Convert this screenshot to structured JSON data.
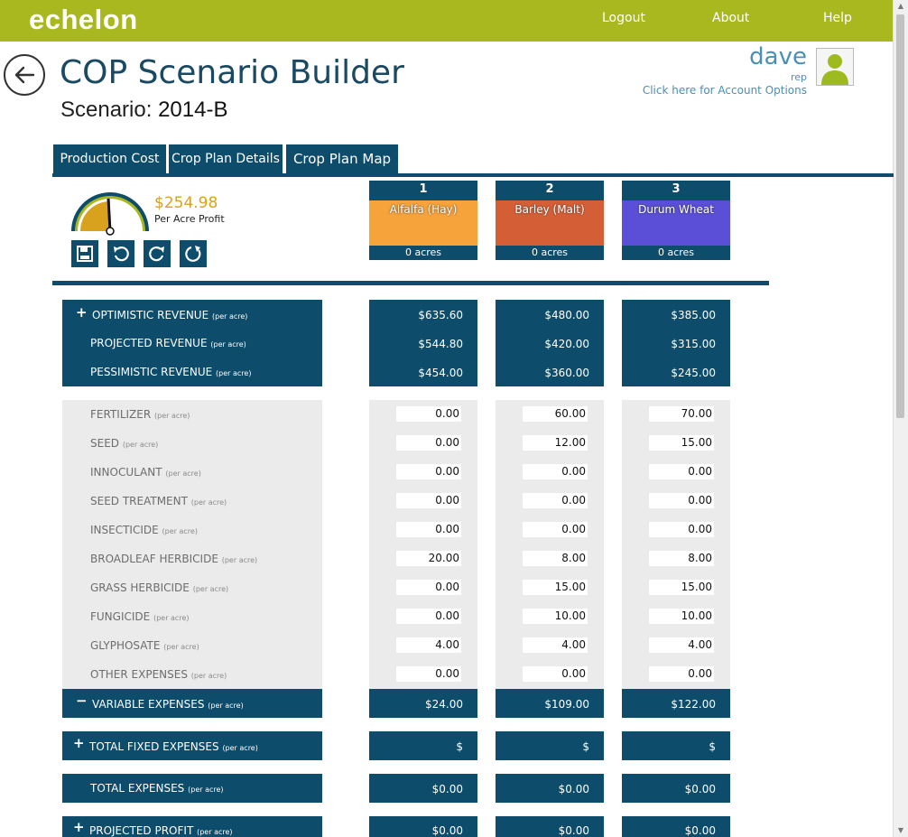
{
  "nav": {
    "logo": "echelon",
    "logout": "Logout",
    "about": "About",
    "help": "Help"
  },
  "page": {
    "title": "COP Scenario Builder",
    "scenario_label": "Scenario:",
    "scenario_value": "2014-B"
  },
  "user": {
    "name": "dave",
    "role": "rep",
    "options": "Click here for Account Options"
  },
  "tabs": [
    {
      "label": "Production Cost"
    },
    {
      "label": "Crop Plan Details"
    },
    {
      "label": "Crop Plan Map"
    }
  ],
  "summary": {
    "profit": "$254.98",
    "profit_label": "Per Acre Profit"
  },
  "toolbar": {
    "save": "save-icon",
    "undo": "undo-icon",
    "redo": "redo-icon",
    "reset": "reset-icon"
  },
  "crops": [
    {
      "num": "1",
      "name": "Alfalfa (Hay)",
      "acres": "0 acres",
      "color": "#f7a33c"
    },
    {
      "num": "2",
      "name": "Barley (Malt)",
      "acres": "0 acres",
      "color": "#d45f36"
    },
    {
      "num": "3",
      "name": "Durum Wheat",
      "acres": "0 acres",
      "color": "#5a4fd6"
    }
  ],
  "per_acre": "(per acre)",
  "revenue": [
    {
      "label": "OPTIMISTIC REVENUE",
      "toggle": "+",
      "values": [
        "$635.60",
        "$480.00",
        "$385.00"
      ]
    },
    {
      "label": "PROJECTED REVENUE",
      "toggle": "",
      "values": [
        "$544.80",
        "$420.00",
        "$315.00"
      ]
    },
    {
      "label": "PESSIMISTIC REVENUE",
      "toggle": "",
      "values": [
        "$454.00",
        "$360.00",
        "$245.00"
      ]
    }
  ],
  "expenses": [
    {
      "label": "FERTILIZER",
      "values": [
        "0.00",
        "60.00",
        "70.00"
      ]
    },
    {
      "label": "SEED",
      "values": [
        "0.00",
        "12.00",
        "15.00"
      ]
    },
    {
      "label": "INNOCULANT",
      "values": [
        "0.00",
        "0.00",
        "0.00"
      ]
    },
    {
      "label": "SEED TREATMENT",
      "values": [
        "0.00",
        "0.00",
        "0.00"
      ]
    },
    {
      "label": "INSECTICIDE",
      "values": [
        "0.00",
        "0.00",
        "0.00"
      ]
    },
    {
      "label": "BROADLEAF HERBICIDE",
      "values": [
        "20.00",
        "8.00",
        "8.00"
      ]
    },
    {
      "label": "GRASS HERBICIDE",
      "values": [
        "0.00",
        "15.00",
        "15.00"
      ]
    },
    {
      "label": "FUNGICIDE",
      "values": [
        "0.00",
        "10.00",
        "10.00"
      ]
    },
    {
      "label": "GLYPHOSATE",
      "values": [
        "4.00",
        "4.00",
        "4.00"
      ]
    },
    {
      "label": "OTHER EXPENSES",
      "values": [
        "0.00",
        "0.00",
        "0.00"
      ]
    }
  ],
  "variable": {
    "label": "VARIABLE EXPENSES",
    "toggle": "−",
    "values": [
      "$24.00",
      "$109.00",
      "$122.00"
    ]
  },
  "fixed": {
    "label": "TOTAL FIXED EXPENSES",
    "toggle": "+",
    "values": [
      "$",
      "$",
      "$"
    ]
  },
  "total": {
    "label": "TOTAL EXPENSES",
    "values": [
      "$0.00",
      "$0.00",
      "$0.00"
    ]
  },
  "profit_row": {
    "label": "PROJECTED PROFIT",
    "toggle": "+",
    "values": [
      "$0.00",
      "$0.00",
      "$0.00"
    ]
  }
}
